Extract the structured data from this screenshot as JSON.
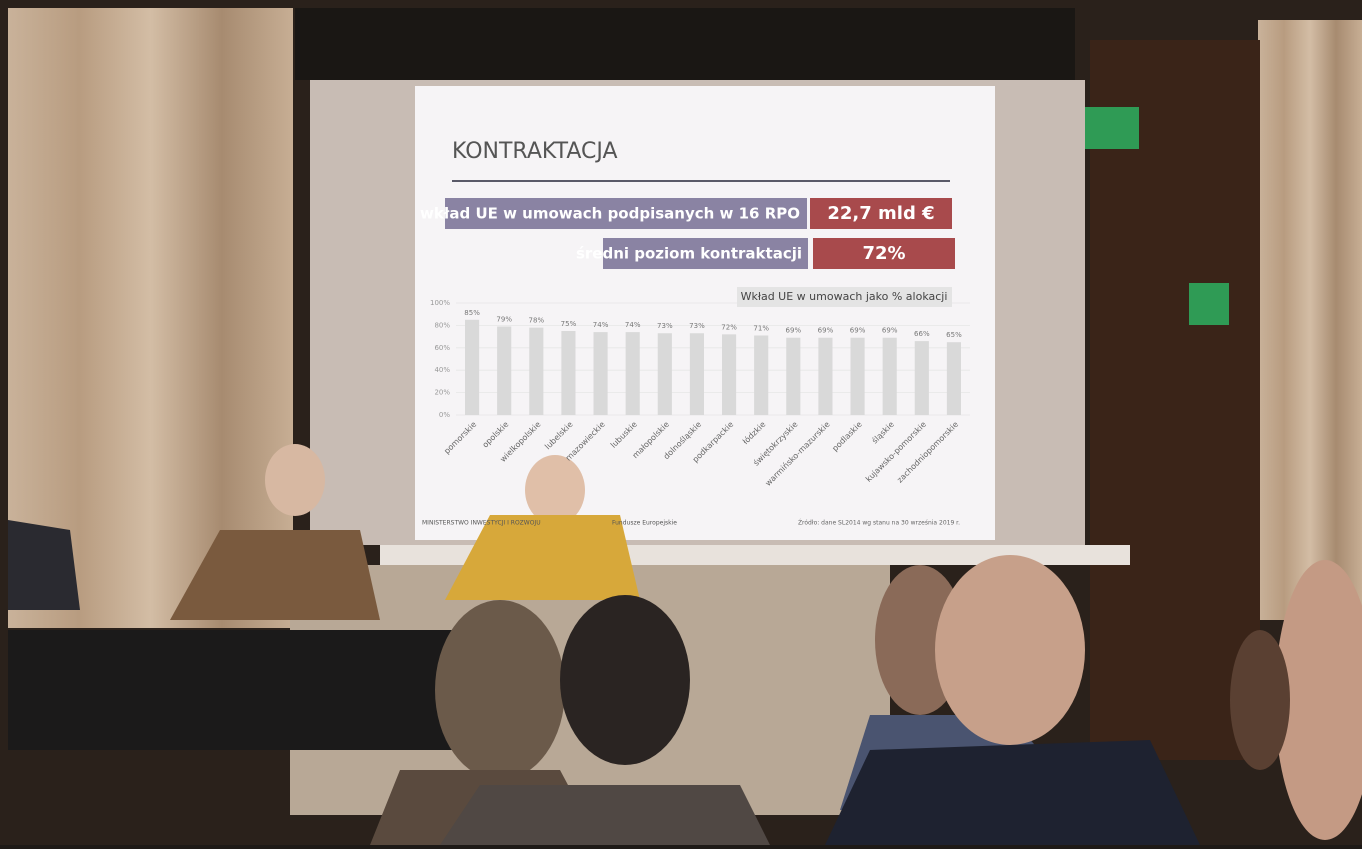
{
  "slide": {
    "title": "KONTRAKTACJA",
    "stats": [
      {
        "label": "wkład UE w umowach podpisanych w 16 RPO",
        "value": "22,7 mld €"
      },
      {
        "label": "średni poziom kontraktacji",
        "value": "72%"
      }
    ],
    "source": "Źródło: dane SL2014 wg stanu na 30 września 2019 r.",
    "logos": [
      "MINISTERSTWO INWESTYCJI I ROZWOJU",
      "Fundusze Europejskie"
    ]
  },
  "chart_data": {
    "type": "bar",
    "title": "Wkład UE w umowach jako % alokacji",
    "categories": [
      "pomorskie",
      "opolskie",
      "wielkopolskie",
      "lubelskie",
      "mazowieckie",
      "lubuskie",
      "małopolskie",
      "dolnośląskie",
      "podkarpackie",
      "łódzkie",
      "świętokrzyskie",
      "warmińsko-mazurskie",
      "podlaskie",
      "śląskie",
      "kujawsko-pomorskie",
      "zachodniopomorskie"
    ],
    "values": [
      85,
      79,
      78,
      75,
      74,
      74,
      73,
      73,
      72,
      71,
      69,
      69,
      69,
      69,
      66,
      65
    ],
    "value_labels": [
      "85%",
      "79%",
      "78%",
      "75%",
      "74%",
      "74%",
      "73%",
      "73%",
      "72%",
      "71%",
      "69%",
      "69%",
      "69%",
      "69%",
      "66%",
      "65%"
    ],
    "color": "#d9d9d9",
    "ylim": [
      0,
      100
    ],
    "yticks": [
      {
        "value": 0,
        "label": "0%"
      },
      {
        "value": 20,
        "label": "20%"
      },
      {
        "value": 40,
        "label": "40%"
      },
      {
        "value": 60,
        "label": "60%"
      },
      {
        "value": 80,
        "label": "80%"
      },
      {
        "value": 100,
        "label": "100%"
      }
    ],
    "grid": true
  }
}
